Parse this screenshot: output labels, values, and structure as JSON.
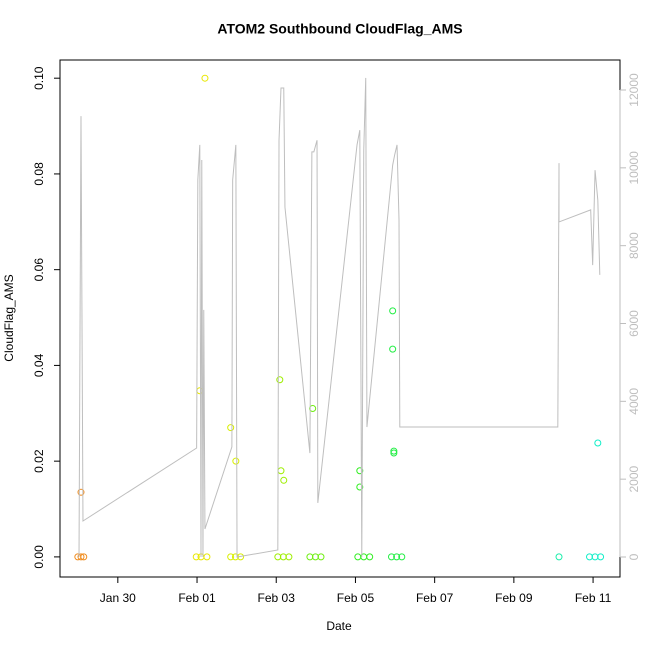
{
  "chart_data": {
    "type": "scatter",
    "title": "ATOM2 Southbound CloudFlag_AMS",
    "x_label": "Date",
    "y_label": "CloudFlag_AMS",
    "xlim": [
      -1.46,
      12.68
    ],
    "xticks": [
      {
        "value": 0,
        "label": "Jan 30"
      },
      {
        "value": 2,
        "label": "Feb 01"
      },
      {
        "value": 4,
        "label": "Feb 03"
      },
      {
        "value": 6,
        "label": "Feb 05"
      },
      {
        "value": 8,
        "label": "Feb 07"
      },
      {
        "value": 10,
        "label": "Feb 09"
      },
      {
        "value": 12,
        "label": "Feb 11"
      }
    ],
    "ylim": [
      -0.0042,
      0.1038
    ],
    "yticks": [
      {
        "value": 0,
        "label": "0.00"
      },
      {
        "value": 0.02,
        "label": "0.02"
      },
      {
        "value": 0.04,
        "label": "0.04"
      },
      {
        "value": 0.06,
        "label": "0.06"
      },
      {
        "value": 0.08,
        "label": "0.08"
      },
      {
        "value": 0.1,
        "label": "0.10"
      }
    ],
    "y2lim": [
      -514,
      12771
    ],
    "y2ticks": [
      0,
      2000,
      4000,
      6000,
      8000,
      10000,
      12000
    ],
    "y2_color": "#bebebe",
    "series": [
      {
        "type": "scatter",
        "x": [
          -1.01,
          -0.93,
          -0.86,
          -0.93,
          1.98,
          2.1,
          2.25,
          2.07,
          2.2,
          2.85,
          2.97,
          3.1,
          2.85,
          2.98,
          4.04,
          4.18,
          4.32,
          4.09,
          4.12,
          4.19,
          4.85,
          4.99,
          5.13,
          4.92,
          6.06,
          6.21,
          6.36,
          6.11,
          6.11,
          6.91,
          7.04,
          7.17,
          6.94,
          6.94,
          6.97,
          6.97,
          11.14,
          11.91,
          12.05,
          12.19,
          12.12
        ],
        "values": [
          0,
          0,
          0,
          0.0135,
          0,
          0,
          0,
          0.0347,
          0.1,
          0,
          0,
          0,
          0.027,
          0.02,
          0,
          0,
          0,
          0.037,
          0.018,
          0.016,
          0,
          0,
          0,
          0.031,
          0,
          0,
          0,
          0.018,
          0.0146,
          0,
          0,
          0,
          0.0514,
          0.0434,
          0.0221,
          0.0217,
          0,
          0,
          0,
          0,
          0.0238
        ],
        "colors": [
          "#F08C1E",
          "#F08C1E",
          "#F08C1E",
          "#F08C1E",
          "#E8E800",
          "#E8E800",
          "#E8E800",
          "#E8E800",
          "#E8E800",
          "#D8EE00",
          "#D8EE00",
          "#D8EE00",
          "#D8EE00",
          "#D8EE00",
          "#9EEE00",
          "#9EEE00",
          "#9EEE00",
          "#9EEE00",
          "#9EEE00",
          "#9EEE00",
          "#6EEE10",
          "#6EEE10",
          "#6EEE10",
          "#6EEE10",
          "#30EE20",
          "#30EE20",
          "#30EE20",
          "#30EE20",
          "#30EE20",
          "#22EE44",
          "#22EE44",
          "#22EE44",
          "#22EE44",
          "#22EE44",
          "#22EE44",
          "#22EE44",
          "#18EEAA",
          "#10EEC8",
          "#10EEC8",
          "#10EEC8",
          "#10EEC8"
        ]
      },
      {
        "type": "line",
        "axis": "y2",
        "color": "#bebebe",
        "x": [
          -0.98,
          -0.93,
          -0.88,
          1.99,
          2.02,
          2.07,
          2.1,
          2.12,
          2.15,
          2.17,
          2.2,
          2.88,
          2.9,
          2.98,
          3.01,
          4.04,
          4.07,
          4.12,
          4.19,
          4.22,
          4.85,
          4.9,
          4.95,
          5.03,
          5.05,
          6.04,
          6.11,
          6.16,
          6.21,
          6.26,
          6.29,
          6.94,
          6.99,
          7.05,
          7.1,
          7.12,
          11.11,
          11.14,
          11.14,
          11.94,
          11.99,
          12.05,
          12.12,
          12.17
        ],
        "values": [
          0,
          11330,
          925,
          2800,
          9690,
          10590,
          0,
          10200,
          0,
          6350,
          720,
          2830,
          9690,
          10590,
          0,
          180,
          10710,
          12050,
          12050,
          8990,
          2670,
          10410,
          10410,
          10710,
          1390,
          10590,
          10970,
          0,
          10460,
          12310,
          3340,
          10070,
          10330,
          10590,
          8660,
          3340,
          3340,
          10120,
          8610,
          8920,
          7500,
          9940,
          9170,
          7250
        ]
      }
    ]
  }
}
